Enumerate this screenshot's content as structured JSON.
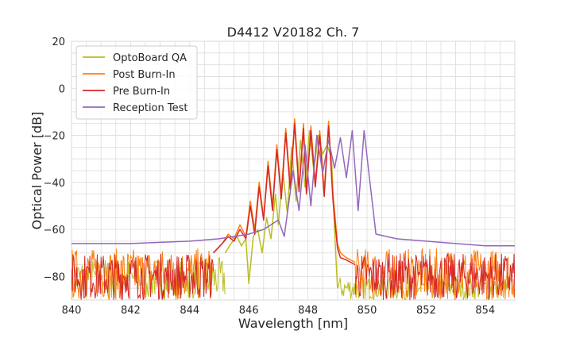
{
  "chart_data": {
    "type": "line",
    "title": "D4412 V20182 Ch. 7",
    "xlabel": "Wavelength [nm]",
    "ylabel": "Optical Power [dB]",
    "xlim": [
      840,
      855
    ],
    "ylim": [
      -90,
      20
    ],
    "xticks": [
      840,
      842,
      844,
      846,
      848,
      850,
      852,
      854
    ],
    "yticks": [
      -80,
      -60,
      -40,
      -20,
      0,
      20
    ],
    "grid": true,
    "legend_position": "top-left",
    "series": [
      {
        "name": "OptoBoard QA",
        "color": "#bcbd22",
        "x": [
          845.2,
          845.4,
          845.6,
          845.75,
          845.9,
          846.0,
          846.15,
          846.3,
          846.45,
          846.6,
          846.75,
          846.9,
          847.0,
          847.15,
          847.3,
          847.45,
          847.6,
          847.75,
          847.9,
          848.05,
          848.2,
          848.35,
          848.5,
          848.65,
          848.8,
          848.9,
          849.0
        ],
        "y": [
          -70,
          -66,
          -63,
          -67,
          -64,
          -83,
          -63,
          -60,
          -70,
          -55,
          -64,
          -45,
          -58,
          -35,
          -53,
          -25,
          -48,
          -22,
          -42,
          -18,
          -35,
          -20,
          -28,
          -24,
          -30,
          -60,
          -85
        ]
      },
      {
        "name": "Post Burn-In",
        "color": "#ff7f0e",
        "x": [
          844.8,
          845.1,
          845.3,
          845.5,
          845.7,
          845.9,
          846.05,
          846.2,
          846.35,
          846.5,
          846.65,
          846.8,
          846.95,
          847.1,
          847.25,
          847.4,
          847.55,
          847.7,
          847.85,
          847.95,
          848.1,
          848.25,
          848.4,
          848.55,
          848.7,
          848.85,
          849.0,
          849.1,
          849.3,
          849.6
        ],
        "y": [
          -70,
          -66,
          -62,
          -64,
          -58,
          -63,
          -48,
          -60,
          -40,
          -55,
          -31,
          -50,
          -24,
          -45,
          -17,
          -41,
          -13,
          -42,
          -15,
          -44,
          -16,
          -40,
          -18,
          -44,
          -14,
          -45,
          -66,
          -70,
          -72,
          -74
        ],
        "noise_band": [
          -90,
          -68
        ]
      },
      {
        "name": "Pre Burn-In",
        "color": "#d62728",
        "x": [
          844.8,
          845.1,
          845.3,
          845.5,
          845.7,
          845.9,
          846.05,
          846.2,
          846.35,
          846.5,
          846.65,
          846.8,
          846.95,
          847.1,
          847.25,
          847.4,
          847.55,
          847.7,
          847.85,
          847.95,
          848.1,
          848.25,
          848.4,
          848.55,
          848.7,
          848.85,
          849.0,
          849.1,
          849.3,
          849.6
        ],
        "y": [
          -70,
          -66,
          -63,
          -65,
          -60,
          -64,
          -50,
          -62,
          -42,
          -56,
          -33,
          -52,
          -26,
          -47,
          -19,
          -43,
          -15,
          -44,
          -17,
          -45,
          -18,
          -42,
          -20,
          -46,
          -16,
          -48,
          -68,
          -72,
          -73,
          -75
        ],
        "noise_band": [
          -90,
          -70
        ]
      },
      {
        "name": "Reception Test",
        "color": "#9467bd",
        "x": [
          840,
          842,
          844,
          845,
          845.5,
          846,
          846.5,
          847,
          847.2,
          847.5,
          847.7,
          847.9,
          848.1,
          848.3,
          848.5,
          848.7,
          848.9,
          849.1,
          849.3,
          849.5,
          849.7,
          849.9,
          850.1,
          850.3,
          851,
          852,
          853,
          854,
          855
        ],
        "y": [
          -66,
          -66,
          -65,
          -64,
          -63,
          -62,
          -60,
          -56,
          -63,
          -35,
          -52,
          -24,
          -50,
          -20,
          -36,
          -22,
          -34,
          -21,
          -38,
          -18,
          -52,
          -18,
          -40,
          -62,
          -64,
          -65,
          -66,
          -67,
          -67
        ]
      }
    ]
  }
}
